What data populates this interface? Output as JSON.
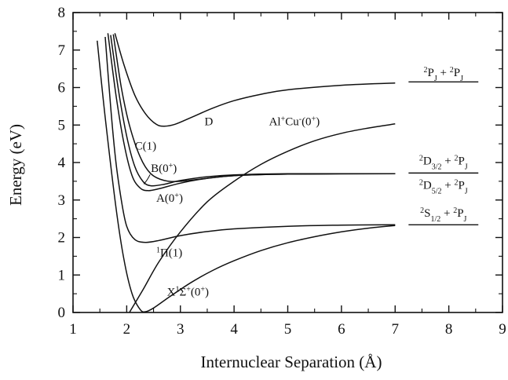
{
  "chart_data": {
    "type": "line",
    "title": "",
    "xlabel": "Internuclear Separation (Å)",
    "ylabel": "Energy (eV)",
    "xlim": [
      1,
      9
    ],
    "ylim": [
      0,
      8
    ],
    "x_ticks": [
      1,
      2,
      3,
      4,
      5,
      6,
      7,
      8,
      9
    ],
    "y_ticks": [
      0,
      1,
      2,
      3,
      4,
      5,
      6,
      7,
      8
    ],
    "grid": false,
    "legend": "none",
    "series": [
      {
        "name": "X¹Σ⁺(0⁺)",
        "color": "#111111",
        "points": [
          [
            1.45,
            7.25
          ],
          [
            1.6,
            5.2
          ],
          [
            1.8,
            2.8
          ],
          [
            1.95,
            1.4
          ],
          [
            2.1,
            0.5
          ],
          [
            2.25,
            0.08
          ],
          [
            2.35,
            0.02
          ],
          [
            2.5,
            0.12
          ],
          [
            2.8,
            0.42
          ],
          [
            3.2,
            0.8
          ],
          [
            3.6,
            1.12
          ],
          [
            4.0,
            1.38
          ],
          [
            4.5,
            1.65
          ],
          [
            5.0,
            1.86
          ],
          [
            5.5,
            2.02
          ],
          [
            6.0,
            2.15
          ],
          [
            6.5,
            2.25
          ],
          [
            7.0,
            2.32
          ]
        ]
      },
      {
        "name": "¹Π(1)",
        "color": "#111111",
        "points": [
          [
            1.6,
            7.35
          ],
          [
            1.7,
            5.5
          ],
          [
            1.8,
            4.0
          ],
          [
            1.9,
            3.0
          ],
          [
            2.0,
            2.3
          ],
          [
            2.15,
            1.95
          ],
          [
            2.35,
            1.87
          ],
          [
            2.6,
            1.92
          ],
          [
            3.0,
            2.05
          ],
          [
            3.5,
            2.16
          ],
          [
            4.0,
            2.23
          ],
          [
            5.0,
            2.3
          ],
          [
            6.0,
            2.33
          ],
          [
            7.0,
            2.34
          ]
        ]
      },
      {
        "name": "A(0⁺)",
        "color": "#111111",
        "points": [
          [
            1.65,
            7.45
          ],
          [
            1.8,
            5.8
          ],
          [
            1.95,
            4.5
          ],
          [
            2.1,
            3.65
          ],
          [
            2.25,
            3.32
          ],
          [
            2.4,
            3.25
          ],
          [
            2.6,
            3.3
          ],
          [
            3.0,
            3.45
          ],
          [
            3.5,
            3.58
          ],
          [
            4.0,
            3.65
          ],
          [
            5.0,
            3.69
          ],
          [
            6.0,
            3.7
          ],
          [
            7.0,
            3.7
          ]
        ]
      },
      {
        "name": "B(0⁺)",
        "color": "#111111",
        "points": [
          [
            1.7,
            7.4
          ],
          [
            1.85,
            5.9
          ],
          [
            2.0,
            4.7
          ],
          [
            2.15,
            3.9
          ],
          [
            2.3,
            3.5
          ],
          [
            2.45,
            3.38
          ],
          [
            2.7,
            3.42
          ],
          [
            3.0,
            3.52
          ],
          [
            3.5,
            3.62
          ],
          [
            4.0,
            3.67
          ],
          [
            5.0,
            3.7
          ],
          [
            7.0,
            3.7
          ]
        ]
      },
      {
        "name": "C(1)",
        "color": "#111111",
        "points": [
          [
            1.75,
            7.42
          ],
          [
            1.9,
            6.0
          ],
          [
            2.05,
            5.0
          ],
          [
            2.25,
            4.15
          ],
          [
            2.45,
            3.7
          ],
          [
            2.7,
            3.52
          ],
          [
            3.0,
            3.5
          ],
          [
            3.5,
            3.58
          ],
          [
            4.0,
            3.65
          ],
          [
            5.0,
            3.69
          ],
          [
            7.0,
            3.7
          ]
        ]
      },
      {
        "name": "D",
        "color": "#111111",
        "points": [
          [
            1.78,
            7.45
          ],
          [
            1.95,
            6.6
          ],
          [
            2.15,
            5.8
          ],
          [
            2.35,
            5.3
          ],
          [
            2.55,
            5.02
          ],
          [
            2.7,
            4.97
          ],
          [
            2.9,
            5.02
          ],
          [
            3.2,
            5.2
          ],
          [
            3.6,
            5.45
          ],
          [
            4.0,
            5.65
          ],
          [
            4.5,
            5.82
          ],
          [
            5.0,
            5.94
          ],
          [
            6.0,
            6.06
          ],
          [
            7.0,
            6.12
          ]
        ]
      },
      {
        "name": "Al⁺Cu⁻(0⁺)",
        "color": "#111111",
        "points": [
          [
            2.05,
            0.0
          ],
          [
            2.3,
            0.6
          ],
          [
            2.6,
            1.35
          ],
          [
            3.0,
            2.15
          ],
          [
            3.5,
            2.95
          ],
          [
            4.0,
            3.5
          ],
          [
            4.5,
            3.95
          ],
          [
            5.0,
            4.3
          ],
          [
            5.5,
            4.58
          ],
          [
            6.0,
            4.78
          ],
          [
            6.5,
            4.92
          ],
          [
            7.0,
            5.03
          ]
        ]
      }
    ],
    "curve_labels": [
      {
        "text": "D",
        "x": 3.45,
        "y": 5.0
      },
      {
        "text": "C(1)",
        "x": 2.15,
        "y": 4.35
      },
      {
        "text": "B(0⁺)",
        "x": 2.45,
        "y": 3.75
      },
      {
        "text": "A(0⁺)",
        "x": 2.55,
        "y": 2.95
      },
      {
        "text": "¹Π(1)",
        "x": 2.55,
        "y": 1.5
      },
      {
        "text": "X¹Σ⁺(0⁺)",
        "x": 2.75,
        "y": 0.45
      },
      {
        "text": "Al⁺Cu⁻(0⁺)",
        "x": 4.65,
        "y": 5.0
      }
    ],
    "asymptotes": [
      {
        "energy": 6.15,
        "label": "²P_J + ²P_J",
        "label_y": 6.3
      },
      {
        "energy": 3.72,
        "label_above": "²D_3/2 + ²P_J",
        "label_below": "²D_5/2 + ²P_J",
        "label_above_y": 3.95,
        "label_below_y": 3.3
      },
      {
        "energy": 2.34,
        "label": "²S_1/2 + ²P_J",
        "label_y": 2.55
      }
    ],
    "asymptote_range": [
      7.25,
      8.55
    ]
  }
}
